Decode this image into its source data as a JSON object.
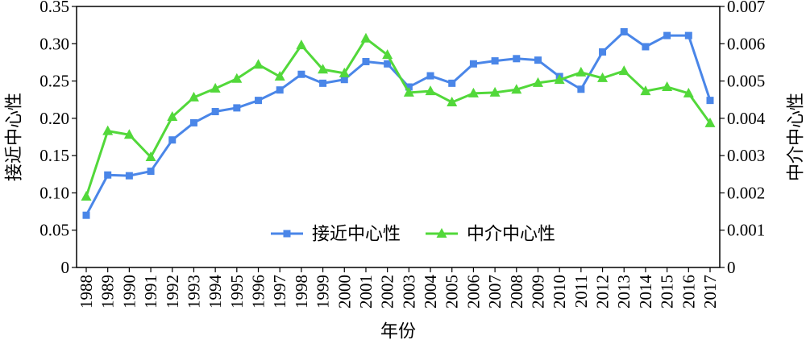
{
  "chart_data": {
    "type": "line",
    "xlabel": "年份",
    "x": [
      "1988",
      "1989",
      "1990",
      "1991",
      "1992",
      "1993",
      "1994",
      "1995",
      "1996",
      "1997",
      "1998",
      "1999",
      "2000",
      "2001",
      "2002",
      "2003",
      "2004",
      "2005",
      "2006",
      "2007",
      "2008",
      "2009",
      "2010",
      "2011",
      "2012",
      "2013",
      "2014",
      "2015",
      "2016",
      "2017"
    ],
    "y_left": {
      "label": "接近中心性",
      "lim": [
        0,
        0.35
      ],
      "ticks": [
        "0",
        "0.05",
        "0.10",
        "0.15",
        "0.20",
        "0.25",
        "0.30",
        "0.35"
      ]
    },
    "y_right": {
      "label": "中介中心性",
      "lim": [
        0,
        0.007
      ],
      "ticks": [
        "0",
        "0.001",
        "0.002",
        "0.003",
        "0.004",
        "0.005",
        "0.006",
        "0.007"
      ]
    },
    "series": [
      {
        "name": "接近中心性",
        "axis": "left",
        "color": "#4a86e8",
        "marker": "square",
        "values": [
          0.07,
          0.124,
          0.123,
          0.129,
          0.171,
          0.194,
          0.209,
          0.214,
          0.224,
          0.238,
          0.259,
          0.247,
          0.252,
          0.276,
          0.273,
          0.242,
          0.257,
          0.247,
          0.273,
          0.277,
          0.28,
          0.278,
          0.256,
          0.239,
          0.289,
          0.316,
          0.296,
          0.311,
          0.311,
          0.224
        ]
      },
      {
        "name": "中介中心性",
        "axis": "right",
        "color": "#52d83a",
        "marker": "triangle-up",
        "values": [
          0.0019,
          0.00366,
          0.00356,
          0.00296,
          0.00404,
          0.00456,
          0.0048,
          0.00506,
          0.00544,
          0.00512,
          0.00596,
          0.00531,
          0.00521,
          0.00614,
          0.0057,
          0.00469,
          0.00473,
          0.00443,
          0.00467,
          0.00469,
          0.00477,
          0.00495,
          0.00503,
          0.00523,
          0.00508,
          0.00527,
          0.00473,
          0.00484,
          0.00467,
          0.00387
        ]
      }
    ],
    "legend": {
      "position": "lower-center"
    },
    "grid": false
  }
}
